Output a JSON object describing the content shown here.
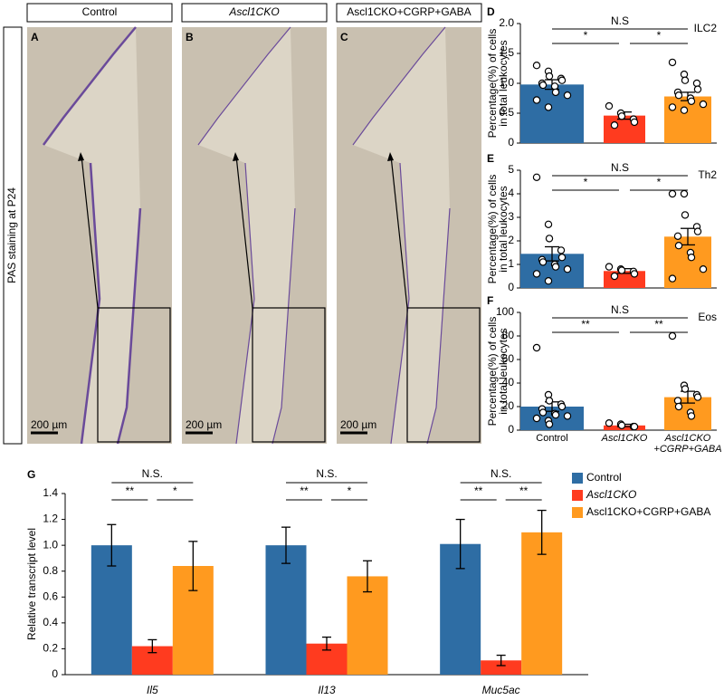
{
  "side_label": "PAS staining at P24",
  "image_panels": [
    {
      "letter": "A",
      "header": "Control",
      "scale_bar": "200 µm"
    },
    {
      "letter": "B",
      "header": "Ascl1CKO",
      "scale_bar": "200 µm"
    },
    {
      "letter": "C",
      "header": "Ascl1CKO+CGRP+GABA",
      "scale_bar": "200 µm"
    }
  ],
  "chart_data": [
    {
      "type": "bar",
      "panel": "D",
      "title": "ILC2",
      "ylabel": [
        "Percentage(%) of cells",
        "in total leukocytes"
      ],
      "ylim": [
        0,
        2
      ],
      "yticks": [
        0,
        0.5,
        {
          "value": 1,
          "label": "1.0"
        },
        1.5,
        {
          "value": 2,
          "label": "2.0"
        }
      ],
      "colors": [
        "#2e6da4",
        "#ff3b1f",
        "#ff9a1f"
      ],
      "values": [
        0.98,
        0.46,
        0.78
      ],
      "errors": [
        0.08,
        0.06,
        0.07
      ],
      "points": [
        [
          1.3,
          1.2,
          1.12,
          1.08,
          1.05,
          1.0,
          0.97,
          0.95,
          0.85,
          0.8,
          0.72,
          0.6
        ],
        [
          0.62,
          0.5,
          0.45,
          0.4,
          0.35,
          0.3
        ],
        [
          1.35,
          1.15,
          1.05,
          1.0,
          0.9,
          0.85,
          0.8,
          0.75,
          0.7,
          0.65,
          0.6,
          0.55
        ]
      ],
      "significance": [
        "N.S",
        "*",
        "*"
      ]
    },
    {
      "type": "bar",
      "panel": "E",
      "title": "Th2",
      "ylabel": [
        "Percentage(%) of cells",
        "in total leukocytes"
      ],
      "ylim": [
        0,
        5
      ],
      "yticks": [
        0,
        1,
        2,
        3,
        4,
        5
      ],
      "colors": [
        "#2e6da4",
        "#ff3b1f",
        "#ff9a1f"
      ],
      "values": [
        1.45,
        0.72,
        2.18
      ],
      "errors": [
        0.3,
        0.1,
        0.35
      ],
      "points": [
        [
          4.7,
          2.7,
          2.1,
          1.6,
          1.3,
          1.2,
          1.1,
          1.0,
          0.9,
          0.8,
          0.6,
          0.3
        ],
        [
          0.9,
          0.8,
          0.75,
          0.7,
          0.6,
          0.5
        ],
        [
          4.0,
          4.0,
          3.1,
          2.6,
          2.4,
          2.2,
          1.8,
          1.5,
          1.3,
          0.8,
          0.4
        ]
      ],
      "significance": [
        "N.S",
        "*",
        "*"
      ]
    },
    {
      "type": "bar",
      "panel": "F",
      "title": "Eos",
      "ylabel": [
        "Percentage(%) of cells",
        "in total leukocytes"
      ],
      "ylim": [
        0,
        100
      ],
      "yticks": [
        0,
        20,
        40,
        60,
        80,
        100
      ],
      "categories": [
        "Control",
        "Ascl1CKO",
        "Ascl1CKO +CGRP+GABA"
      ],
      "colors": [
        "#2e6da4",
        "#ff3b1f",
        "#ff9a1f"
      ],
      "values": [
        20,
        4,
        28
      ],
      "errors": [
        4,
        1,
        5
      ],
      "points": [
        [
          70,
          30,
          25,
          22,
          20,
          18,
          15,
          14,
          13,
          12,
          10,
          8,
          5
        ],
        [
          6,
          5,
          4,
          3,
          3
        ],
        [
          80,
          38,
          35,
          30,
          28,
          25,
          20,
          15,
          12
        ]
      ],
      "significance": [
        "N.S",
        "**",
        "**"
      ]
    },
    {
      "type": "bar",
      "panel": "G",
      "ylabel": "Relative transcript level",
      "ylim": [
        0,
        1.4
      ],
      "yticks": [
        0,
        0.2,
        0.4,
        0.6,
        0.8,
        {
          "value": 1,
          "label": "1.0"
        },
        1.2,
        1.4
      ],
      "categories": [
        "Il5",
        "Il13",
        "Muc5ac"
      ],
      "series": [
        {
          "name": "Control",
          "color": "#2e6da4",
          "values": [
            1.0,
            1.0,
            1.01
          ],
          "errors": [
            0.16,
            0.14,
            0.19
          ]
        },
        {
          "name": "Ascl1CKO",
          "color": "#ff3b1f",
          "values": [
            0.22,
            0.24,
            0.11
          ],
          "errors": [
            0.05,
            0.05,
            0.04
          ]
        },
        {
          "name": "Ascl1CKO+CGRP+GABA",
          "color": "#ff9a1f",
          "values": [
            0.84,
            0.76,
            1.1
          ],
          "errors": [
            0.19,
            0.12,
            0.17
          ]
        }
      ],
      "significance": [
        [
          "N.S.",
          "**",
          "*"
        ],
        [
          "N.S.",
          "**",
          "*"
        ],
        [
          "N.S.",
          "**",
          "**"
        ]
      ]
    }
  ]
}
